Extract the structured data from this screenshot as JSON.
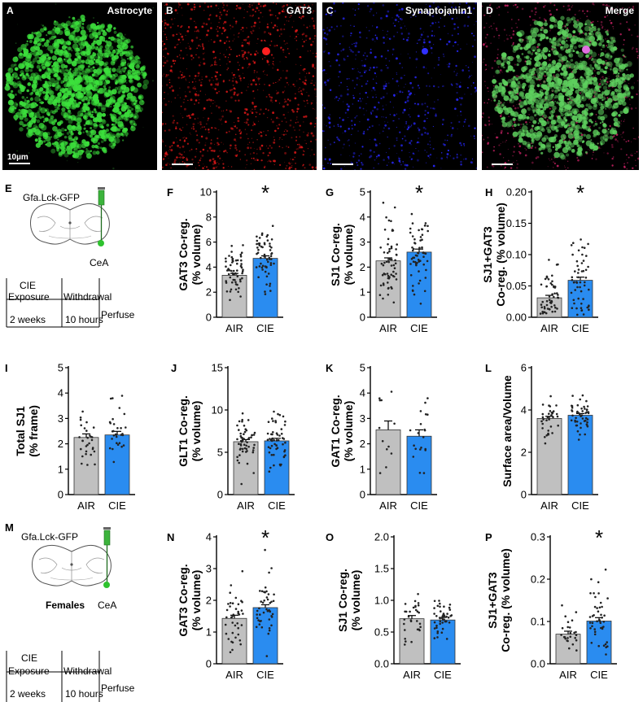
{
  "image_panels": [
    {
      "letter": "A",
      "title": "Astrocyte",
      "scale_label": "10µm",
      "color": "#3be83b"
    },
    {
      "letter": "B",
      "title": "GAT3",
      "color": "#e01818"
    },
    {
      "letter": "C",
      "title": "Synaptojanin1",
      "color": "#2020ff"
    },
    {
      "letter": "D",
      "title": "Merge",
      "color": "#7a50b0"
    }
  ],
  "schematic_top": {
    "letter": "E",
    "virus": "Gfa.Lck-GFP",
    "region": "CeA",
    "timeline": {
      "row1": [
        "CIE",
        ""
      ],
      "row2": [
        "Exposure",
        "Withdrawal",
        "Perfuse"
      ],
      "row3": [
        "2 weeks",
        "10 hours"
      ]
    }
  },
  "schematic_bottom": {
    "letter": "M",
    "virus": "Gfa.Lck-GFP",
    "sex_label": "Females",
    "region": "CeA",
    "timeline": {
      "row1": [
        "CIE",
        ""
      ],
      "row2": [
        "Exposure",
        "Withdrawal",
        "Perfuse"
      ],
      "row3": [
        "2 weeks",
        "10 hours"
      ]
    }
  },
  "colors": {
    "air": "#c0c0c0",
    "cie": "#2a8cf0"
  },
  "chart_data": [
    {
      "letter": "F",
      "type": "bar",
      "categories": [
        "AIR",
        "CIE"
      ],
      "values": [
        3.35,
        4.7
      ],
      "errors": [
        0.15,
        0.2
      ],
      "ylabel": [
        "GAT3 Co-reg.",
        "(% volume)"
      ],
      "ylim": [
        0,
        10
      ],
      "ticks": [
        "0",
        "2",
        "4",
        "6",
        "8",
        "10"
      ],
      "tick_values": [
        0,
        2,
        4,
        6,
        8,
        10
      ],
      "sig": "*",
      "n": [
        60,
        60
      ],
      "spread": [
        1.0,
        1.3
      ]
    },
    {
      "letter": "G",
      "type": "bar",
      "categories": [
        "AIR",
        "CIE"
      ],
      "values": [
        2.25,
        2.6
      ],
      "errors": [
        0.12,
        0.12
      ],
      "ylabel": [
        "SJ1 Co-reg.",
        "(% volume)"
      ],
      "ylim": [
        0,
        5
      ],
      "ticks": [
        "0",
        "1",
        "2",
        "3",
        "4",
        "5"
      ],
      "tick_values": [
        0,
        1,
        2,
        3,
        4,
        5
      ],
      "sig": "*",
      "n": [
        60,
        60
      ],
      "spread": [
        0.9,
        0.85
      ]
    },
    {
      "letter": "H",
      "type": "bar",
      "categories": [
        "AIR",
        "CIE"
      ],
      "values": [
        0.031,
        0.059
      ],
      "errors": [
        0.004,
        0.005
      ],
      "ylabel": [
        "SJ1+GAT3",
        "Co-reg. (% volume)"
      ],
      "ylim": [
        0,
        0.2
      ],
      "ticks": [
        "0.00",
        "0.05",
        "0.10",
        "0.15",
        "0.20"
      ],
      "tick_values": [
        0,
        0.05,
        0.1,
        0.15,
        0.2
      ],
      "sig": "*",
      "n": [
        55,
        55
      ],
      "spread": [
        0.025,
        0.035
      ]
    },
    {
      "letter": "I",
      "type": "bar",
      "categories": [
        "AIR",
        "CIE"
      ],
      "values": [
        2.25,
        2.35
      ],
      "errors": [
        0.14,
        0.14
      ],
      "ylabel": [
        "Total SJ1",
        "(% frame)"
      ],
      "ylim": [
        0,
        5
      ],
      "ticks": [
        "0",
        "1",
        "2",
        "3",
        "4",
        "5"
      ],
      "tick_values": [
        0,
        1,
        2,
        3,
        4,
        5
      ],
      "sig": "",
      "n": [
        30,
        30
      ],
      "spread": [
        0.7,
        0.6
      ]
    },
    {
      "letter": "J",
      "type": "bar",
      "categories": [
        "AIR",
        "CIE"
      ],
      "values": [
        6.25,
        6.35
      ],
      "errors": [
        0.25,
        0.3
      ],
      "ylabel": [
        "GLT1 Co-reg.",
        "(% volume)"
      ],
      "ylim": [
        0,
        15
      ],
      "ticks": [
        "0",
        "5",
        "10",
        "15"
      ],
      "tick_values": [
        0,
        5,
        10,
        15
      ],
      "sig": "",
      "n": [
        55,
        55
      ],
      "spread": [
        1.6,
        1.8
      ]
    },
    {
      "letter": "K",
      "type": "bar",
      "categories": [
        "AIR",
        "CIE"
      ],
      "values": [
        2.55,
        2.3
      ],
      "errors": [
        0.35,
        0.25
      ],
      "ylabel": [
        "GAT1 Co-reg.",
        "(% volume)"
      ],
      "ylim": [
        0,
        5
      ],
      "ticks": [
        "0",
        "1",
        "2",
        "3",
        "4",
        "5"
      ],
      "tick_values": [
        0,
        1,
        2,
        3,
        4,
        5
      ],
      "sig": "",
      "n": [
        12,
        20
      ],
      "spread": [
        1.1,
        0.8
      ]
    },
    {
      "letter": "L",
      "type": "bar",
      "categories": [
        "AIR",
        "CIE"
      ],
      "values": [
        3.6,
        3.75
      ],
      "errors": [
        0.1,
        0.08
      ],
      "ylabel": [
        "Surface area/Volume"
      ],
      "ylim": [
        0,
        6
      ],
      "ticks": [
        "0",
        "2",
        "4",
        "6"
      ],
      "tick_values": [
        0,
        2,
        4,
        6
      ],
      "sig": "",
      "n": [
        35,
        50
      ],
      "spread": [
        0.5,
        0.45
      ]
    },
    {
      "letter": "N",
      "type": "bar",
      "categories": [
        "AIR",
        "CIE"
      ],
      "values": [
        1.43,
        1.77
      ],
      "errors": [
        0.1,
        0.09
      ],
      "ylabel": [
        "GAT3 Co-reg.",
        "(% volume)"
      ],
      "ylim": [
        0,
        4
      ],
      "ticks": [
        "0",
        "1",
        "2",
        "3",
        "4"
      ],
      "tick_values": [
        0,
        1,
        2,
        3,
        4
      ],
      "sig": "*",
      "n": [
        40,
        45
      ],
      "spread": [
        0.6,
        0.55
      ]
    },
    {
      "letter": "O",
      "type": "bar",
      "categories": [
        "AIR",
        "CIE"
      ],
      "values": [
        0.71,
        0.69
      ],
      "errors": [
        0.05,
        0.04
      ],
      "ylabel": [
        "SJ1 Co-reg.",
        "(% volume)"
      ],
      "ylim": [
        0,
        2
      ],
      "ticks": [
        "0.0",
        "0.5",
        "1.0",
        "1.5",
        "2.0"
      ],
      "tick_values": [
        0,
        0.5,
        1,
        1.5,
        2
      ],
      "sig": "",
      "n": [
        30,
        45
      ],
      "spread": [
        0.25,
        0.2
      ]
    },
    {
      "letter": "P",
      "type": "bar",
      "categories": [
        "AIR",
        "CIE"
      ],
      "values": [
        0.07,
        0.101
      ],
      "errors": [
        0.007,
        0.008
      ],
      "ylabel": [
        "SJ1+GAT3",
        "Co-reg. (% volume)"
      ],
      "ylim": [
        0,
        0.3
      ],
      "ticks": [
        "0.0",
        "0.1",
        "0.2",
        "0.3"
      ],
      "tick_values": [
        0,
        0.1,
        0.2,
        0.3
      ],
      "sig": "*",
      "n": [
        25,
        45
      ],
      "spread": [
        0.03,
        0.05
      ]
    }
  ]
}
